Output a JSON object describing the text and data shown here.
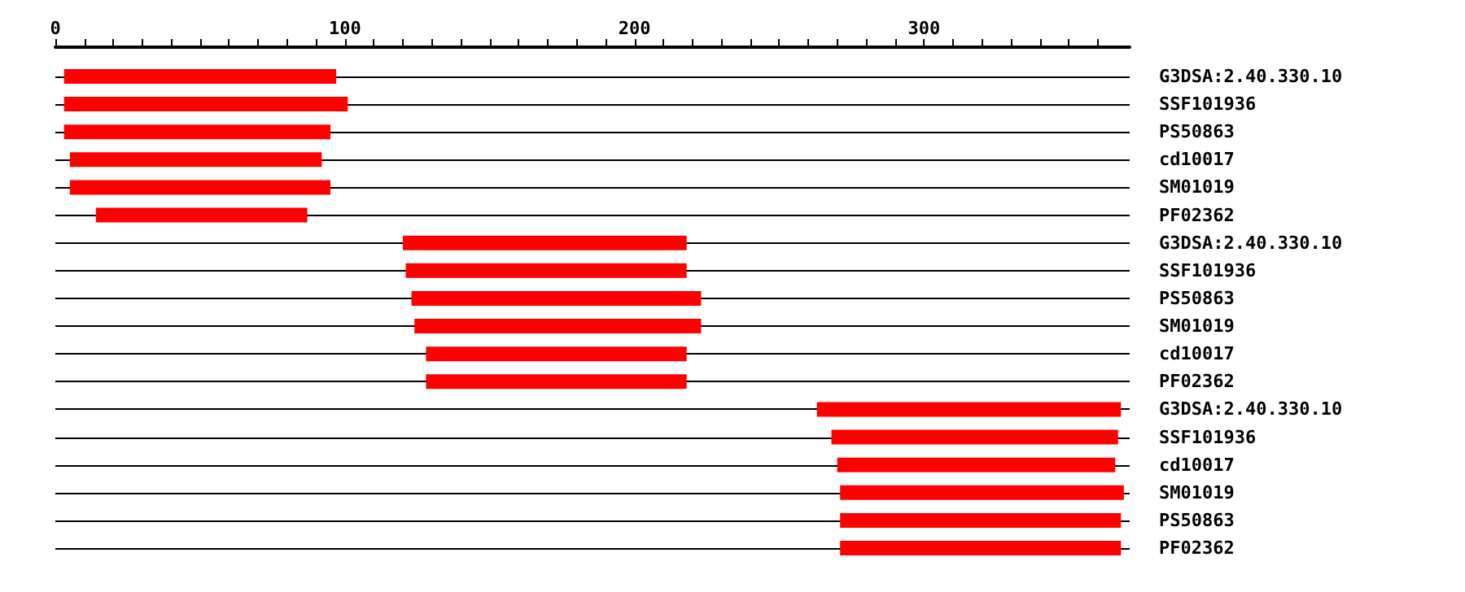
{
  "chart_data": {
    "type": "bar",
    "orientation": "horizontal",
    "categories": [
      "G3DSA:2.40.330.10",
      "SSF101936",
      "PS50863",
      "cd10017",
      "SM01019",
      "PF02362",
      "G3DSA:2.40.330.10",
      "SSF101936",
      "PS50863",
      "SM01019",
      "cd10017",
      "PF02362",
      "G3DSA:2.40.330.10",
      "SSF101936",
      "cd10017",
      "SM01019",
      "PS50863",
      "PF02362"
    ],
    "base": [
      3,
      3,
      3,
      5,
      5,
      14,
      120,
      121,
      123,
      124,
      128,
      128,
      263,
      268,
      270,
      271,
      271,
      271
    ],
    "values": [
      94,
      98,
      92,
      87,
      90,
      73,
      98,
      97,
      100,
      99,
      90,
      90,
      105,
      99,
      96,
      98,
      97,
      97
    ],
    "color": "#ff0000",
    "xlim": [
      0,
      371
    ],
    "xticks": [
      0,
      {
        "value": 10,
        "label": null
      },
      {
        "value": 20,
        "label": null
      },
      {
        "value": 30,
        "label": null
      },
      {
        "value": 40,
        "label": null
      },
      {
        "value": 50,
        "label": null
      },
      {
        "value": 60,
        "label": null
      },
      {
        "value": 70,
        "label": null
      },
      {
        "value": 80,
        "label": null
      },
      {
        "value": 90,
        "label": null
      },
      100,
      {
        "value": 110,
        "label": null
      },
      {
        "value": 120,
        "label": null
      },
      {
        "value": 130,
        "label": null
      },
      {
        "value": 140,
        "label": null
      },
      {
        "value": 150,
        "label": null
      },
      {
        "value": 160,
        "label": null
      },
      {
        "value": 170,
        "label": null
      },
      {
        "value": 180,
        "label": null
      },
      {
        "value": 190,
        "label": null
      },
      200,
      {
        "value": 210,
        "label": null
      },
      {
        "value": 220,
        "label": null
      },
      {
        "value": 230,
        "label": null
      },
      {
        "value": 240,
        "label": null
      },
      {
        "value": 250,
        "label": null
      },
      {
        "value": 260,
        "label": null
      },
      {
        "value": 270,
        "label": null
      },
      {
        "value": 280,
        "label": null
      },
      {
        "value": 290,
        "label": null
      },
      300,
      {
        "value": 310,
        "label": null
      },
      {
        "value": 320,
        "label": null
      },
      {
        "value": 330,
        "label": null
      },
      {
        "value": 340,
        "label": null
      },
      {
        "value": 350,
        "label": null
      },
      {
        "value": 360,
        "label": null
      }
    ],
    "grid": "y"
  }
}
